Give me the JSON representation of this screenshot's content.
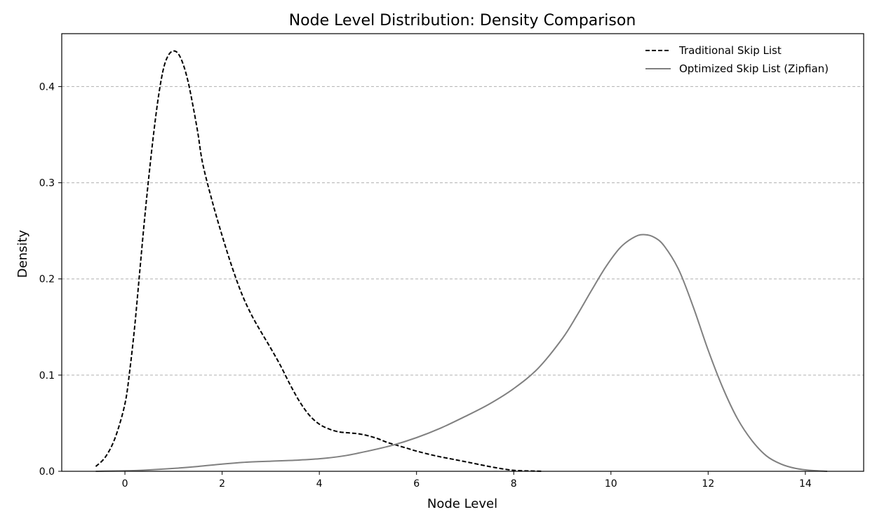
{
  "chart_data": {
    "type": "line",
    "title": "Node Level Distribution: Density Comparison",
    "xlabel": "Node Level",
    "ylabel": "Density",
    "xlim": [
      -1.3,
      15.2
    ],
    "ylim": [
      0,
      0.455
    ],
    "xticks": [
      0,
      2,
      4,
      6,
      8,
      10,
      12,
      14
    ],
    "yticks": [
      0.0,
      0.1,
      0.2,
      0.3,
      0.4
    ],
    "ytick_labels": [
      "0.0",
      "0.1",
      "0.2",
      "0.3",
      "0.4"
    ],
    "grid": "y-dashed",
    "legend_position": "top-right",
    "series": [
      {
        "name": "Traditional Skip List",
        "color": "#000000",
        "style": "dashed",
        "x": [
          -0.6,
          -0.4,
          -0.2,
          0.0,
          0.1,
          0.2,
          0.3,
          0.4,
          0.5,
          0.6,
          0.7,
          0.8,
          0.9,
          1.0,
          1.1,
          1.2,
          1.3,
          1.4,
          1.5,
          1.6,
          1.8,
          2.0,
          2.2,
          2.4,
          2.6,
          2.8,
          3.0,
          3.2,
          3.4,
          3.6,
          3.8,
          4.0,
          4.2,
          4.4,
          4.6,
          4.8,
          5.0,
          5.2,
          5.4,
          5.6,
          5.8,
          6.0,
          6.4,
          6.8,
          7.2,
          7.6,
          8.0,
          8.4,
          8.6
        ],
        "y": [
          0.005,
          0.015,
          0.035,
          0.07,
          0.105,
          0.15,
          0.205,
          0.26,
          0.31,
          0.355,
          0.393,
          0.42,
          0.433,
          0.437,
          0.434,
          0.423,
          0.405,
          0.38,
          0.352,
          0.32,
          0.28,
          0.245,
          0.213,
          0.185,
          0.163,
          0.145,
          0.128,
          0.11,
          0.09,
          0.072,
          0.058,
          0.049,
          0.044,
          0.041,
          0.04,
          0.039,
          0.037,
          0.034,
          0.03,
          0.027,
          0.024,
          0.021,
          0.016,
          0.012,
          0.008,
          0.004,
          0.001,
          0.0003,
          0.0
        ]
      },
      {
        "name": "Optimized Skip List (Zipfian)",
        "color": "#808080",
        "style": "solid",
        "x": [
          -0.6,
          0.0,
          0.5,
          1.0,
          1.5,
          2.0,
          2.5,
          3.0,
          3.5,
          4.0,
          4.5,
          5.0,
          5.5,
          6.0,
          6.5,
          7.0,
          7.5,
          8.0,
          8.5,
          9.0,
          9.3,
          9.6,
          9.9,
          10.2,
          10.5,
          10.7,
          10.9,
          11.1,
          11.4,
          11.7,
          12.0,
          12.3,
          12.6,
          12.9,
          13.2,
          13.5,
          13.8,
          14.1,
          14.45
        ],
        "y": [
          0.0,
          0.0005,
          0.0015,
          0.003,
          0.005,
          0.0075,
          0.0095,
          0.0105,
          0.0115,
          0.013,
          0.016,
          0.021,
          0.027,
          0.035,
          0.045,
          0.057,
          0.07,
          0.086,
          0.107,
          0.138,
          0.162,
          0.188,
          0.213,
          0.233,
          0.244,
          0.246,
          0.243,
          0.234,
          0.209,
          0.17,
          0.126,
          0.087,
          0.055,
          0.032,
          0.016,
          0.0075,
          0.003,
          0.001,
          0.0
        ]
      }
    ]
  }
}
